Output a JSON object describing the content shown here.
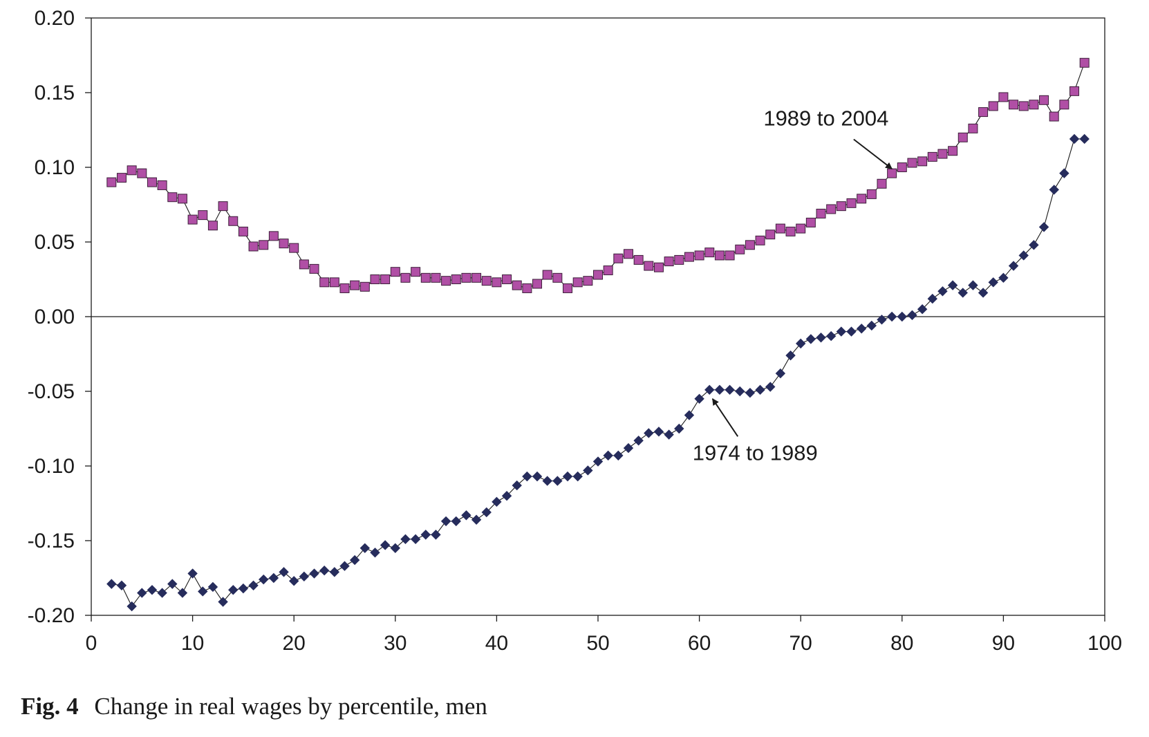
{
  "caption": {
    "label": "Fig. 4",
    "text": "Change in real wages by percentile, men"
  },
  "chart_data": {
    "type": "scatter",
    "title": "",
    "xlabel": "",
    "ylabel": "",
    "xlim": [
      0,
      100
    ],
    "ylim": [
      -0.2,
      0.2
    ],
    "x_ticks": [
      0,
      10,
      20,
      30,
      40,
      50,
      60,
      70,
      80,
      90,
      100
    ],
    "x_tick_labels": [
      "0",
      "10",
      "20",
      "30",
      "40",
      "50",
      "60",
      "70",
      "80",
      "90",
      "100"
    ],
    "y_ticks": [
      0.2,
      0.15,
      0.1,
      0.05,
      0.0,
      -0.05,
      -0.1,
      -0.15,
      -0.2
    ],
    "y_tick_labels": [
      "0.20",
      "0.15",
      "0.10",
      "0.05",
      "0.00",
      "-0.05",
      "-0.10",
      "-0.15",
      "-0.20"
    ],
    "grid": false,
    "zero_line": true,
    "legend": "none",
    "x": [
      2,
      3,
      4,
      5,
      6,
      7,
      8,
      9,
      10,
      11,
      12,
      13,
      14,
      15,
      16,
      17,
      18,
      19,
      20,
      21,
      22,
      23,
      24,
      25,
      26,
      27,
      28,
      29,
      30,
      31,
      32,
      33,
      34,
      35,
      36,
      37,
      38,
      39,
      40,
      41,
      42,
      43,
      44,
      45,
      46,
      47,
      48,
      49,
      50,
      51,
      52,
      53,
      54,
      55,
      56,
      57,
      58,
      59,
      60,
      61,
      62,
      63,
      64,
      65,
      66,
      67,
      68,
      69,
      70,
      71,
      72,
      73,
      74,
      75,
      76,
      77,
      78,
      79,
      80,
      81,
      82,
      83,
      84,
      85,
      86,
      87,
      88,
      89,
      90,
      91,
      92,
      93,
      94,
      95,
      96,
      97,
      98
    ],
    "series": [
      {
        "label": "1989 to 2004",
        "marker": "square",
        "color": "#b04fa5",
        "edge_color": "#3d1f3a",
        "values": [
          0.09,
          0.093,
          0.098,
          0.096,
          0.09,
          0.088,
          0.08,
          0.079,
          0.065,
          0.068,
          0.061,
          0.074,
          0.064,
          0.057,
          0.047,
          0.048,
          0.054,
          0.049,
          0.046,
          0.035,
          0.032,
          0.023,
          0.023,
          0.019,
          0.021,
          0.02,
          0.025,
          0.025,
          0.03,
          0.026,
          0.03,
          0.026,
          0.026,
          0.024,
          0.025,
          0.026,
          0.026,
          0.024,
          0.023,
          0.025,
          0.021,
          0.019,
          0.022,
          0.028,
          0.026,
          0.019,
          0.023,
          0.024,
          0.028,
          0.031,
          0.039,
          0.042,
          0.038,
          0.034,
          0.033,
          0.037,
          0.038,
          0.04,
          0.041,
          0.043,
          0.041,
          0.041,
          0.045,
          0.048,
          0.051,
          0.055,
          0.059,
          0.057,
          0.059,
          0.063,
          0.069,
          0.072,
          0.074,
          0.076,
          0.079,
          0.082,
          0.089,
          0.096,
          0.1,
          0.103,
          0.104,
          0.107,
          0.109,
          0.111,
          0.12,
          0.126,
          0.137,
          0.141,
          0.147,
          0.142,
          0.141,
          0.142,
          0.145,
          0.134,
          0.142,
          0.151,
          0.17
        ]
      },
      {
        "label": "1974 to 1989",
        "marker": "diamond",
        "color": "#262c5c",
        "edge_color": "#262c5c",
        "values": [
          -0.179,
          -0.18,
          -0.194,
          -0.185,
          -0.183,
          -0.185,
          -0.179,
          -0.185,
          -0.172,
          -0.184,
          -0.181,
          -0.191,
          -0.183,
          -0.182,
          -0.18,
          -0.176,
          -0.175,
          -0.171,
          -0.177,
          -0.174,
          -0.172,
          -0.17,
          -0.171,
          -0.167,
          -0.163,
          -0.155,
          -0.158,
          -0.153,
          -0.155,
          -0.149,
          -0.149,
          -0.146,
          -0.146,
          -0.137,
          -0.137,
          -0.133,
          -0.136,
          -0.131,
          -0.124,
          -0.12,
          -0.113,
          -0.107,
          -0.107,
          -0.11,
          -0.11,
          -0.107,
          -0.107,
          -0.103,
          -0.097,
          -0.093,
          -0.093,
          -0.088,
          -0.083,
          -0.078,
          -0.077,
          -0.079,
          -0.075,
          -0.066,
          -0.055,
          -0.049,
          -0.049,
          -0.049,
          -0.05,
          -0.051,
          -0.049,
          -0.047,
          -0.038,
          -0.026,
          -0.018,
          -0.015,
          -0.014,
          -0.013,
          -0.01,
          -0.01,
          -0.008,
          -0.006,
          -0.002,
          0.0,
          0.0,
          0.001,
          0.005,
          0.012,
          0.017,
          0.021,
          0.016,
          0.021,
          0.016,
          0.023,
          0.026,
          0.034,
          0.041,
          0.048,
          0.06,
          0.085,
          0.096,
          0.119,
          0.119
        ]
      }
    ],
    "annotations": [
      {
        "text": "1989 to 2004",
        "series": 0,
        "target_x": 79,
        "target_y": 0.099,
        "text_x": 72.5,
        "text_y": 0.128
      },
      {
        "text": "1974 to 1989",
        "series": 1,
        "target_x": 61.3,
        "target_y": -0.055,
        "text_x": 65.5,
        "text_y": -0.096
      }
    ]
  }
}
